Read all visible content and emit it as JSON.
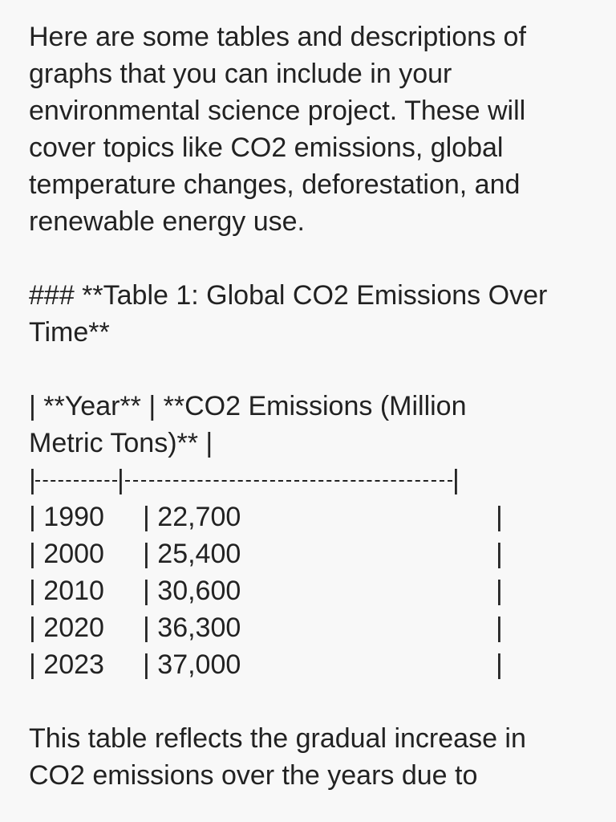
{
  "intro": {
    "line1": "Here are some tables and descriptions of",
    "line2": "graphs that you can include in your",
    "line3": "environmental science project. These will",
    "line4": "cover topics like CO2 emissions, global",
    "line5": "temperature changes, deforestation, and",
    "line6": "renewable energy use."
  },
  "heading": {
    "line1": "### **Table 1: Global CO2 Emissions Over",
    "line2": "Time**"
  },
  "table": {
    "header_line1": "| **Year** | **CO2 Emissions (Million",
    "header_line2": "Metric Tons)** |",
    "separator_bars": [
      "|",
      "|",
      "|"
    ],
    "rows": [
      {
        "year": "| 1990",
        "value": "| 22,700",
        "end": "|"
      },
      {
        "year": "| 2000",
        "value": "| 25,400",
        "end": "|"
      },
      {
        "year": "| 2010",
        "value": "| 30,600",
        "end": "|"
      },
      {
        "year": "| 2020",
        "value": "| 36,300",
        "end": "|"
      },
      {
        "year": "| 2023",
        "value": "| 37,000",
        "end": "|"
      }
    ]
  },
  "closing": {
    "line1": "This table reflects the gradual increase in",
    "line2": "CO2 emissions over the years due to"
  }
}
